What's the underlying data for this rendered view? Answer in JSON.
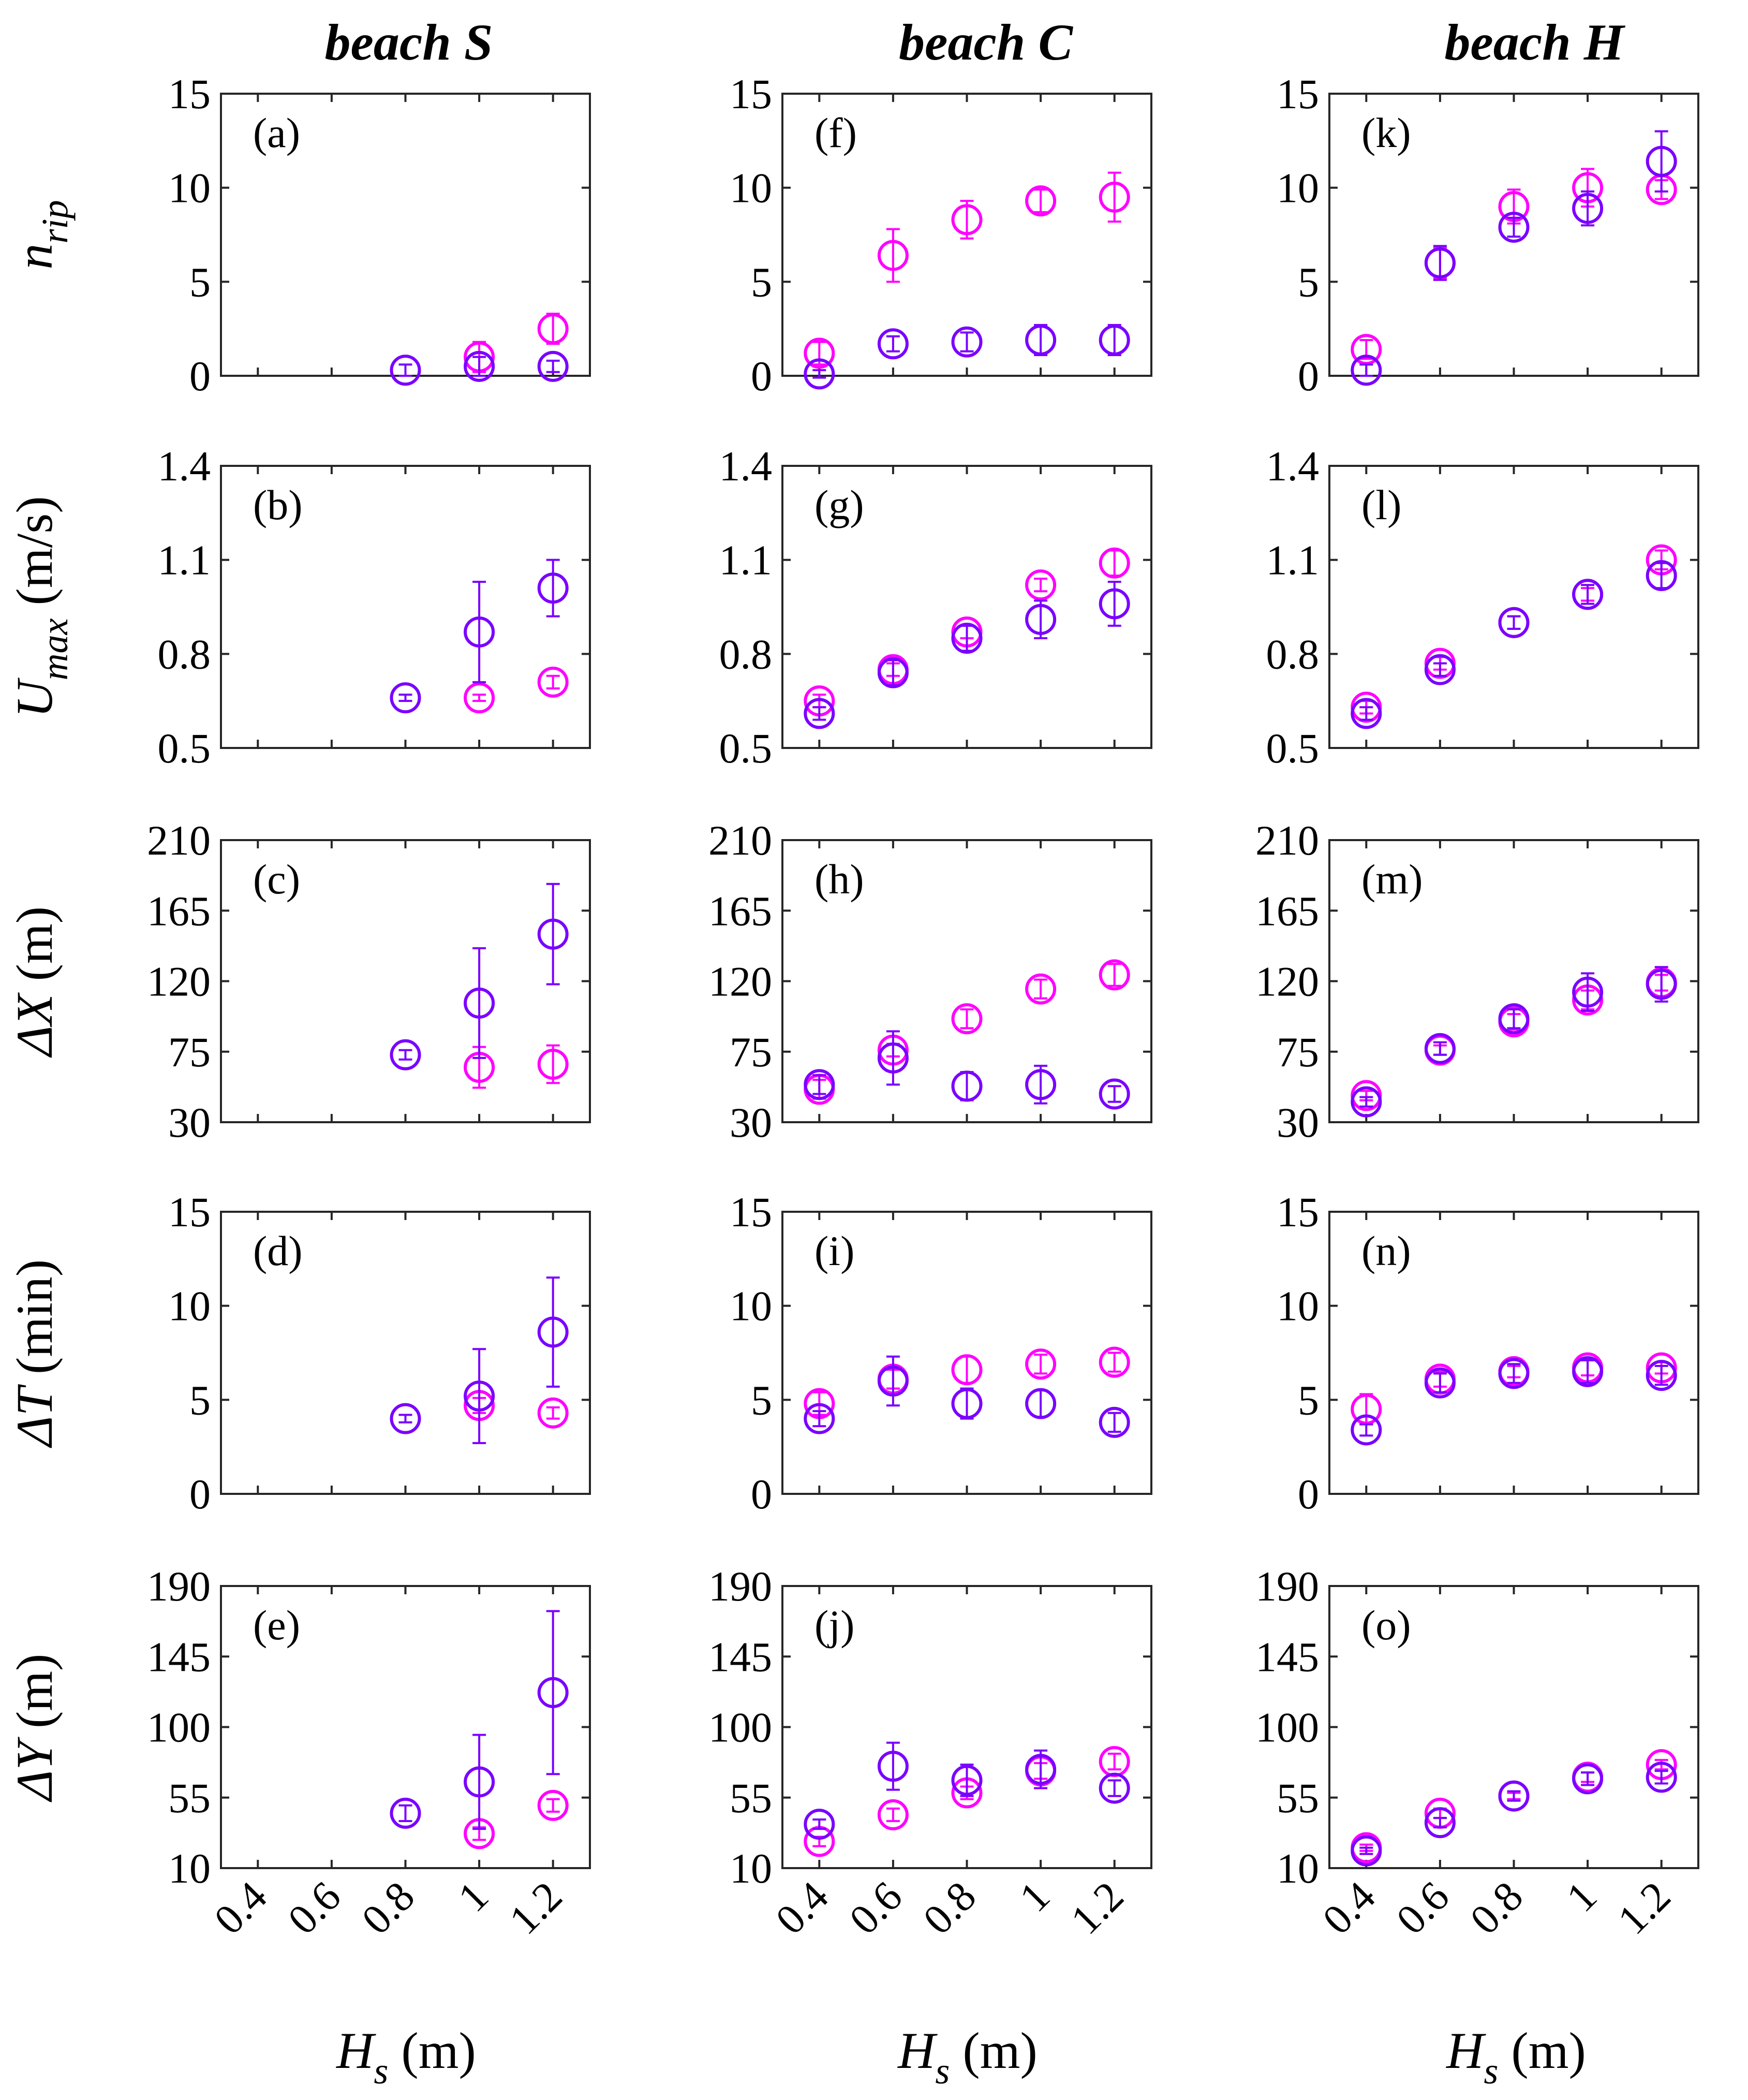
{
  "colors": {
    "series1": "#ff00ff",
    "series2": "#7a00ff"
  },
  "chart_data": {
    "type": "scatter",
    "column_titles": [
      "beach S",
      "beach C",
      "beach H"
    ],
    "xlabel": {
      "main": "H",
      "sub": "s",
      "unit": " (m)"
    },
    "x_ticks": [
      "0.4",
      "0.6",
      "0.8",
      "1",
      "1.2"
    ],
    "xlim": [
      0.3,
      1.3
    ],
    "series_names": [
      "series 1 (magenta)",
      "series 2 (violet)"
    ],
    "rows": [
      {
        "ylabel": {
          "main": "n",
          "sub": "rip",
          "unit": ""
        },
        "ylim": [
          0,
          15
        ],
        "yticks": [
          0,
          5,
          10,
          15
        ],
        "ytick_labels": [
          "0",
          "5",
          "10",
          "15"
        ]
      },
      {
        "ylabel": {
          "main": "U",
          "sub": "max",
          "unit": " (m/s)"
        },
        "ylim": [
          0.5,
          1.4
        ],
        "yticks": [
          0.5,
          0.8,
          1.1,
          1.4
        ],
        "ytick_labels": [
          "0.5",
          "0.8",
          "1.1",
          "1.4"
        ]
      },
      {
        "ylabel": {
          "main": "ΔX",
          "sub": "",
          "unit": " (m)"
        },
        "ylim": [
          30,
          210
        ],
        "yticks": [
          30,
          75,
          120,
          165,
          210
        ],
        "ytick_labels": [
          "30",
          "75",
          "120",
          "165",
          "210"
        ]
      },
      {
        "ylabel": {
          "main": "ΔT",
          "sub": "",
          "unit": " (min)"
        },
        "ylim": [
          0,
          15
        ],
        "yticks": [
          0,
          5,
          10,
          15
        ],
        "ytick_labels": [
          "0",
          "5",
          "10",
          "15"
        ]
      },
      {
        "ylabel": {
          "main": "ΔY",
          "sub": "",
          "unit": " (m)"
        },
        "ylim": [
          10,
          190
        ],
        "yticks": [
          10,
          55,
          100,
          145,
          190
        ],
        "ytick_labels": [
          "10",
          "55",
          "100",
          "145",
          "190"
        ]
      }
    ],
    "panels": [
      {
        "label": "(a)",
        "row": 0,
        "col": 0,
        "series": [
          {
            "x": [
              1.0,
              1.2
            ],
            "y": [
              1.0,
              2.5
            ],
            "err": [
              0.8,
              0.8
            ]
          },
          {
            "x": [
              0.8,
              1.0,
              1.2
            ],
            "y": [
              0.3,
              0.5,
              0.5
            ],
            "err": [
              0.3,
              0.5,
              0.3
            ]
          }
        ]
      },
      {
        "label": "(b)",
        "row": 1,
        "col": 0,
        "series": [
          {
            "x": [
              1.0,
              1.2
            ],
            "y": [
              0.66,
              0.71
            ],
            "err": [
              0.01,
              0.02
            ]
          },
          {
            "x": [
              0.8,
              1.0,
              1.2
            ],
            "y": [
              0.66,
              0.87,
              1.01
            ],
            "err": [
              0.01,
              0.16,
              0.09
            ]
          }
        ]
      },
      {
        "label": "(c)",
        "row": 2,
        "col": 0,
        "series": [
          {
            "x": [
              1.0,
              1.2
            ],
            "y": [
              65,
              67
            ],
            "err": [
              13,
              12
            ]
          },
          {
            "x": [
              0.8,
              1.0,
              1.2
            ],
            "y": [
              73,
              106,
              150
            ],
            "err": [
              3,
              35,
              32
            ]
          }
        ]
      },
      {
        "label": "(d)",
        "row": 3,
        "col": 0,
        "series": [
          {
            "x": [
              1.0,
              1.2
            ],
            "y": [
              4.7,
              4.3
            ],
            "err": [
              0.4,
              0.3
            ]
          },
          {
            "x": [
              0.8,
              1.0,
              1.2
            ],
            "y": [
              4.0,
              5.2,
              8.6
            ],
            "err": [
              0.2,
              2.5,
              2.9
            ]
          }
        ]
      },
      {
        "label": "(e)",
        "row": 4,
        "col": 0,
        "series": [
          {
            "x": [
              1.0,
              1.2
            ],
            "y": [
              32,
              50
            ],
            "err": [
              4,
              4
            ]
          },
          {
            "x": [
              0.8,
              1.0,
              1.2
            ],
            "y": [
              45,
              65,
              122
            ],
            "err": [
              5,
              30,
              52
            ]
          }
        ]
      },
      {
        "label": "(f)",
        "row": 0,
        "col": 1,
        "series": [
          {
            "x": [
              0.4,
              0.6,
              0.8,
              1.0,
              1.2
            ],
            "y": [
              1.2,
              6.4,
              8.3,
              9.3,
              9.5
            ],
            "err": [
              0.6,
              1.4,
              1.0,
              0.6,
              1.3
            ]
          },
          {
            "x": [
              0.4,
              0.6,
              0.8,
              1.0,
              1.2
            ],
            "y": [
              0.1,
              1.7,
              1.8,
              1.9,
              1.9
            ],
            "err": [
              0.2,
              0.4,
              0.5,
              0.8,
              0.8
            ]
          }
        ]
      },
      {
        "label": "(g)",
        "row": 1,
        "col": 1,
        "series": [
          {
            "x": [
              0.4,
              0.6,
              0.8,
              1.0,
              1.2
            ],
            "y": [
              0.65,
              0.75,
              0.87,
              1.02,
              1.09
            ],
            "err": [
              0.02,
              0.02,
              0.02,
              0.02,
              0.04
            ]
          },
          {
            "x": [
              0.4,
              0.6,
              0.8,
              1.0,
              1.2
            ],
            "y": [
              0.61,
              0.74,
              0.85,
              0.91,
              0.96
            ],
            "err": [
              0.02,
              0.04,
              0.04,
              0.06,
              0.07
            ]
          }
        ]
      },
      {
        "label": "(h)",
        "row": 2,
        "col": 1,
        "series": [
          {
            "x": [
              0.4,
              0.6,
              0.8,
              1.0,
              1.2
            ],
            "y": [
              51,
              76,
              96,
              115,
              124
            ],
            "err": [
              6,
              4,
              6,
              6,
              7
            ]
          },
          {
            "x": [
              0.4,
              0.6,
              0.8,
              1.0,
              1.2
            ],
            "y": [
              54,
              71,
              53,
              54,
              48
            ],
            "err": [
              6,
              17,
              9,
              12,
              5
            ]
          }
        ]
      },
      {
        "label": "(i)",
        "row": 3,
        "col": 1,
        "series": [
          {
            "x": [
              0.4,
              0.6,
              0.8,
              1.0,
              1.2
            ],
            "y": [
              4.8,
              6.1,
              6.6,
              6.9,
              7.0
            ],
            "err": [
              0.6,
              0.5,
              0.7,
              0.5,
              0.5
            ]
          },
          {
            "x": [
              0.4,
              0.6,
              0.8,
              1.0,
              1.2
            ],
            "y": [
              4.0,
              6.0,
              4.8,
              4.8,
              3.8
            ],
            "err": [
              0.4,
              1.3,
              0.8,
              0.7,
              0.5
            ]
          }
        ]
      },
      {
        "label": "(j)",
        "row": 4,
        "col": 1,
        "series": [
          {
            "x": [
              0.4,
              0.6,
              0.8,
              1.0,
              1.2
            ],
            "y": [
              27,
              44,
              58,
              72,
              78
            ],
            "err": [
              3,
              4,
              4,
              5,
              5
            ]
          },
          {
            "x": [
              0.4,
              0.6,
              0.8,
              1.0,
              1.2
            ],
            "y": [
              38,
              75,
              66,
              73,
              61
            ],
            "err": [
              3,
              15,
              10,
              12,
              5
            ]
          }
        ]
      },
      {
        "label": "(k)",
        "row": 0,
        "col": 2,
        "series": [
          {
            "x": [
              0.4,
              0.6,
              0.8,
              1.0,
              1.2
            ],
            "y": [
              1.4,
              6.0,
              9.0,
              10.0,
              9.9
            ],
            "err": [
              0.5,
              0.8,
              0.9,
              1.0,
              0.5
            ]
          },
          {
            "x": [
              0.4,
              0.6,
              0.8,
              1.0,
              1.2
            ],
            "y": [
              0.3,
              6.0,
              7.9,
              8.9,
              11.4
            ],
            "err": [
              0.3,
              0.9,
              0.5,
              0.9,
              1.6
            ]
          }
        ]
      },
      {
        "label": "(l)",
        "row": 1,
        "col": 2,
        "series": [
          {
            "x": [
              0.4,
              0.6,
              0.8,
              1.0,
              1.2
            ],
            "y": [
              0.63,
              0.77,
              0.9,
              0.99,
              1.1
            ],
            "err": [
              0.02,
              0.02,
              0.02,
              0.02,
              0.03
            ]
          },
          {
            "x": [
              0.4,
              0.6,
              0.8,
              1.0,
              1.2
            ],
            "y": [
              0.61,
              0.75,
              0.9,
              0.99,
              1.05
            ],
            "err": [
              0.02,
              0.02,
              0.02,
              0.03,
              0.04
            ]
          }
        ]
      },
      {
        "label": "(m)",
        "row": 2,
        "col": 2,
        "series": [
          {
            "x": [
              0.4,
              0.6,
              0.8,
              1.0,
              1.2
            ],
            "y": [
              47,
              76,
              94,
              108,
              119
            ],
            "err": [
              3,
              3,
              5,
              6,
              5
            ]
          },
          {
            "x": [
              0.4,
              0.6,
              0.8,
              1.0,
              1.2
            ],
            "y": [
              43,
              77,
              96,
              113,
              118
            ],
            "err": [
              3,
              4,
              6,
              12,
              11
            ]
          }
        ]
      },
      {
        "label": "(n)",
        "row": 3,
        "col": 2,
        "series": [
          {
            "x": [
              0.4,
              0.6,
              0.8,
              1.0,
              1.2
            ],
            "y": [
              4.5,
              6.1,
              6.5,
              6.7,
              6.7
            ],
            "err": [
              0.8,
              0.4,
              0.3,
              0.4,
              0.3
            ]
          },
          {
            "x": [
              0.4,
              0.6,
              0.8,
              1.0,
              1.2
            ],
            "y": [
              3.4,
              5.9,
              6.4,
              6.5,
              6.3
            ],
            "err": [
              0.3,
              0.5,
              0.5,
              0.6,
              0.5
            ]
          }
        ]
      },
      {
        "label": "(o)",
        "row": 4,
        "col": 2,
        "series": [
          {
            "x": [
              0.4,
              0.6,
              0.8,
              1.0,
              1.2
            ],
            "y": [
              23,
              45,
              56,
              68,
              76
            ],
            "err": [
              2,
              3,
              2,
              3,
              3
            ]
          },
          {
            "x": [
              0.4,
              0.6,
              0.8,
              1.0,
              1.2
            ],
            "y": [
              21,
              39,
              56,
              67,
              68
            ],
            "err": [
              2,
              3,
              3,
              4,
              4
            ]
          }
        ]
      }
    ]
  }
}
